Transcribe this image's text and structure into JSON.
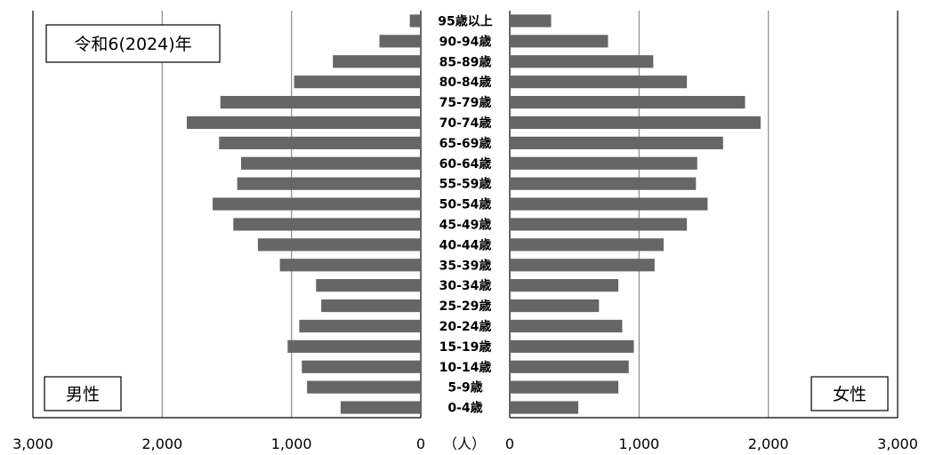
{
  "chart_data": {
    "type": "bar",
    "subtype": "population-pyramid",
    "era_label": "令和6(2024)年",
    "left_label": "男性",
    "right_label": "女性",
    "unit_label": "（人）",
    "xlim": [
      0,
      3000
    ],
    "grid": true,
    "left_ticks": [
      "3,000",
      "2,000",
      "1,000",
      "0"
    ],
    "right_ticks": [
      "0",
      "1,000",
      "2,000",
      "3,000"
    ],
    "categories": [
      "95歳以上",
      "90-94歳",
      "85-89歳",
      "80-84歳",
      "75-79歳",
      "70-74歳",
      "65-69歳",
      "60-64歳",
      "55-59歳",
      "50-54歳",
      "45-49歳",
      "40-44歳",
      "35-39歳",
      "30-34歳",
      "25-29歳",
      "20-24歳",
      "15-19歳",
      "10-14歳",
      "5-9歳",
      "0-4歳"
    ],
    "series": [
      {
        "name": "男性",
        "values": [
          85,
          320,
          680,
          980,
          1550,
          1810,
          1560,
          1390,
          1420,
          1610,
          1450,
          1260,
          1090,
          810,
          770,
          940,
          1030,
          920,
          880,
          620
        ],
        "color": "#666666"
      },
      {
        "name": "女性",
        "values": [
          320,
          760,
          1110,
          1370,
          1820,
          1940,
          1650,
          1450,
          1440,
          1530,
          1370,
          1190,
          1120,
          840,
          690,
          870,
          960,
          920,
          840,
          530
        ],
        "color": "#666666"
      }
    ]
  }
}
